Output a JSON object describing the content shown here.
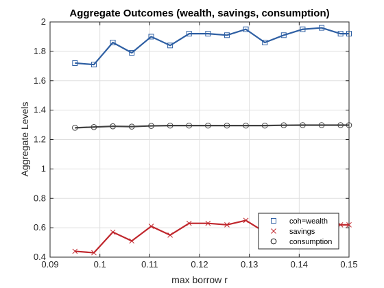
{
  "chart_data": {
    "type": "line",
    "title": "Aggregate Outcomes (wealth, savings, consumption)",
    "xlabel": "max borrow r",
    "ylabel": "Aggregate Levels",
    "xlim": [
      0.09,
      0.15
    ],
    "ylim": [
      0.4,
      2.0
    ],
    "x_ticks": [
      0.09,
      0.1,
      0.11,
      0.12,
      0.13,
      0.14,
      0.15
    ],
    "x_tick_labels": [
      "0.09",
      "0.1",
      "0.11",
      "0.12",
      "0.13",
      "0.14",
      "0.15"
    ],
    "y_ticks": [
      0.4,
      0.6,
      0.8,
      1.0,
      1.2,
      1.4,
      1.6,
      1.8,
      2.0
    ],
    "y_tick_labels": [
      "0.4",
      "0.6",
      "0.8",
      "1",
      "1.2",
      "1.4",
      "1.6",
      "1.8",
      "2"
    ],
    "grid": true,
    "legend_position": "bottom-right",
    "x": [
      0.095,
      0.0988,
      0.1026,
      0.1064,
      0.1103,
      0.1141,
      0.1179,
      0.1217,
      0.1255,
      0.1293,
      0.1331,
      0.1369,
      0.1407,
      0.1445,
      0.1483,
      0.15
    ],
    "series": [
      {
        "name": "coh=wealth",
        "marker": "square",
        "color": "#2e5fa3",
        "values": [
          1.72,
          1.71,
          1.86,
          1.79,
          1.9,
          1.84,
          1.92,
          1.92,
          1.91,
          1.95,
          1.86,
          1.91,
          1.95,
          1.96,
          1.92,
          1.92
        ]
      },
      {
        "name": "savings",
        "marker": "x",
        "color": "#c0272d",
        "values": [
          0.44,
          0.43,
          0.57,
          0.51,
          0.61,
          0.55,
          0.63,
          0.63,
          0.62,
          0.65,
          0.57,
          0.62,
          0.65,
          0.66,
          0.62,
          0.62
        ]
      },
      {
        "name": "consumption",
        "marker": "circle",
        "color": "#404040",
        "values": [
          1.28,
          1.285,
          1.29,
          1.288,
          1.293,
          1.295,
          1.295,
          1.295,
          1.295,
          1.295,
          1.295,
          1.297,
          1.298,
          1.298,
          1.298,
          1.298
        ]
      }
    ]
  }
}
